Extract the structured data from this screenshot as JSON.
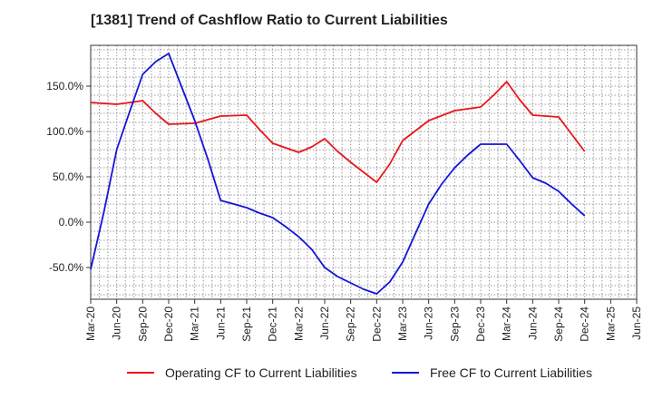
{
  "chart_data": {
    "type": "line",
    "title": "[1381]  Trend of Cashflow Ratio to Current Liabilities",
    "xlabel": "",
    "ylabel": "",
    "x_ticks": [
      "Mar-20",
      "Jun-20",
      "Sep-20",
      "Dec-20",
      "Mar-21",
      "Jun-21",
      "Sep-21",
      "Dec-21",
      "Mar-22",
      "Jun-22",
      "Sep-22",
      "Dec-22",
      "Mar-23",
      "Jun-23",
      "Sep-23",
      "Dec-23",
      "Mar-24",
      "Jun-24",
      "Sep-24",
      "Dec-24",
      "Mar-25",
      "Jun-25"
    ],
    "y_ticks": [
      "150.0%",
      "100.0%",
      "50.0%",
      "0.0%",
      "-50.0%"
    ],
    "y_tick_values": [
      150,
      100,
      50,
      0,
      -50
    ],
    "ylim": [
      -85,
      195
    ],
    "grid": true,
    "legend_position": "bottom",
    "series": [
      {
        "name": "Operating CF to Current Liabilities",
        "color": "#e8171b",
        "points": [
          [
            0,
            132
          ],
          [
            1,
            130
          ],
          [
            2,
            134
          ],
          [
            2.5,
            120
          ],
          [
            3,
            108
          ],
          [
            4,
            109
          ],
          [
            4.5,
            113
          ],
          [
            5,
            117
          ],
          [
            6,
            118
          ],
          [
            6.5,
            102
          ],
          [
            7,
            87
          ],
          [
            8,
            77
          ],
          [
            8.5,
            83
          ],
          [
            9,
            92
          ],
          [
            9.5,
            78
          ],
          [
            10,
            66
          ],
          [
            10.5,
            55
          ],
          [
            11,
            44
          ],
          [
            11.5,
            64
          ],
          [
            12,
            90
          ],
          [
            13,
            112
          ],
          [
            14,
            123
          ],
          [
            15,
            127
          ],
          [
            15.5,
            140
          ],
          [
            16,
            155
          ],
          [
            16.5,
            135
          ],
          [
            17,
            118
          ],
          [
            18,
            116
          ],
          [
            18.5,
            97
          ],
          [
            19,
            78
          ]
        ]
      },
      {
        "name": "Free CF to Current Liabilities",
        "color": "#1414d9",
        "points": [
          [
            0,
            -52
          ],
          [
            0.5,
            10
          ],
          [
            1,
            80
          ],
          [
            1.5,
            122
          ],
          [
            2,
            163
          ],
          [
            2.5,
            177
          ],
          [
            3,
            186
          ],
          [
            4,
            112
          ],
          [
            4.5,
            70
          ],
          [
            5,
            24
          ],
          [
            6,
            16
          ],
          [
            6.5,
            10
          ],
          [
            7,
            5
          ],
          [
            7.5,
            -5
          ],
          [
            8,
            -16
          ],
          [
            8.5,
            -30
          ],
          [
            9,
            -50
          ],
          [
            9.5,
            -60
          ],
          [
            10,
            -67
          ],
          [
            10.5,
            -74
          ],
          [
            11,
            -79
          ],
          [
            11.5,
            -66
          ],
          [
            12,
            -44
          ],
          [
            12.5,
            -12
          ],
          [
            13,
            20
          ],
          [
            13.5,
            42
          ],
          [
            14,
            60
          ],
          [
            14.5,
            74
          ],
          [
            15,
            86
          ],
          [
            16,
            86
          ],
          [
            16.5,
            68
          ],
          [
            17,
            49
          ],
          [
            17.5,
            43
          ],
          [
            18,
            34
          ],
          [
            18.5,
            20
          ],
          [
            19,
            7
          ]
        ]
      }
    ]
  }
}
